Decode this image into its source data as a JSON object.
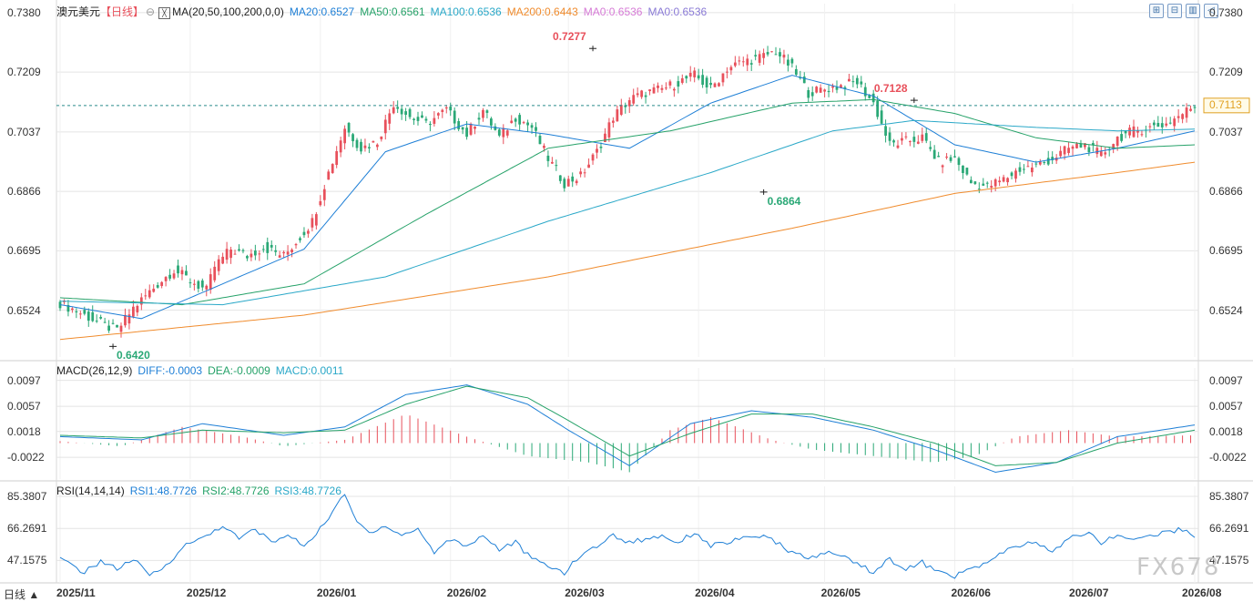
{
  "header": {
    "symbol": "澳元美元",
    "period": "【日线】",
    "period_icon": "circle-dot-icon",
    "ma_icon": "indicator-icon",
    "ma_label": "MA(20,50,100,200,0,0)",
    "ma_values": [
      {
        "text": "MA20:0.6527",
        "color": "#1e7fd6"
      },
      {
        "text": "MA50:0.6561",
        "color": "#26a269"
      },
      {
        "text": "MA100:0.6536",
        "color": "#2aa8c8"
      },
      {
        "text": "MA200:0.6443",
        "color": "#f08c2e"
      },
      {
        "text": "MA0:0.6536",
        "color": "#d67ad6"
      },
      {
        "text": "MA0:0.6536",
        "color": "#8a7ad6"
      }
    ],
    "macd_label": "MACD(26,12,9)",
    "macd_values": [
      {
        "text": "DIFF:-0.0003",
        "color": "#1e7fd6"
      },
      {
        "text": "DEA:-0.0009",
        "color": "#26a269"
      },
      {
        "text": "MACD:0.0011",
        "color": "#2aa8c8"
      }
    ],
    "rsi_label": "RSI(14,14,14)",
    "rsi_values": [
      {
        "text": "RSI1:48.7726",
        "color": "#1e7fd6"
      },
      {
        "text": "RSI2:48.7726",
        "color": "#26a269"
      },
      {
        "text": "RSI3:48.7726",
        "color": "#2aa8c8"
      }
    ]
  },
  "toolbar": {
    "buttons": [
      {
        "name": "zoom-in-icon",
        "glyph": "⊞"
      },
      {
        "name": "zoom-out-icon",
        "glyph": "⊟"
      },
      {
        "name": "chart-settings-icon",
        "glyph": "▥"
      },
      {
        "name": "back-icon",
        "glyph": "◁"
      }
    ]
  },
  "period_tab": "日线 ▲",
  "watermark": "FX678",
  "colors": {
    "up": "#e8505b",
    "down": "#2aa876",
    "grid": "#e4e4e4",
    "ma20": "#1e7fd6",
    "ma50": "#26a269",
    "ma100": "#2aa8c8",
    "ma200": "#f08c2e"
  },
  "chart_data": [
    {
      "type": "candlestick",
      "title": "澳元美元【日线】",
      "x_ticks": [
        "2025/11",
        "2025/12",
        "2026/01",
        "2026/02",
        "2026/03",
        "2026/04",
        "2026/05",
        "2026/06",
        "2026/07",
        "2026/08"
      ],
      "y_ticks": [
        "0.7380",
        "0.7209",
        "0.7037",
        "0.6866",
        "0.6695",
        "0.6524"
      ],
      "ylim": [
        0.64,
        0.7385
      ],
      "annotations": [
        {
          "text": "0.7277",
          "type": "high",
          "value": 0.7277,
          "index": 131
        },
        {
          "text": "0.6420",
          "type": "low",
          "value": 0.642,
          "index": 13
        },
        {
          "text": "0.6864",
          "type": "low",
          "value": 0.6864,
          "index": 173
        },
        {
          "text": "0.7128",
          "type": "high",
          "value": 0.7128,
          "index": 210
        }
      ],
      "current_price": {
        "text": "0.7113",
        "value": 0.7113
      },
      "closes_anchor": [
        [
          0,
          0.6545
        ],
        [
          6,
          0.651
        ],
        [
          11,
          0.648
        ],
        [
          14,
          0.6465
        ],
        [
          18,
          0.653
        ],
        [
          24,
          0.66
        ],
        [
          28,
          0.664
        ],
        [
          32,
          0.661
        ],
        [
          36,
          0.658
        ],
        [
          38,
          0.665
        ],
        [
          42,
          0.67
        ],
        [
          46,
          0.668
        ],
        [
          50,
          0.6705
        ],
        [
          55,
          0.668
        ],
        [
          58,
          0.672
        ],
        [
          62,
          0.678
        ],
        [
          66,
          0.692
        ],
        [
          70,
          0.705
        ],
        [
          74,
          0.699
        ],
        [
          78,
          0.701
        ],
        [
          82,
          0.712
        ],
        [
          86,
          0.708
        ],
        [
          90,
          0.706
        ],
        [
          95,
          0.71
        ],
        [
          100,
          0.703
        ],
        [
          104,
          0.71
        ],
        [
          108,
          0.702
        ],
        [
          112,
          0.708
        ],
        [
          116,
          0.705
        ],
        [
          120,
          0.696
        ],
        [
          124,
          0.689
        ],
        [
          128,
          0.691
        ],
        [
          132,
          0.698
        ],
        [
          136,
          0.708
        ],
        [
          140,
          0.713
        ],
        [
          144,
          0.715
        ],
        [
          148,
          0.716
        ],
        [
          152,
          0.718
        ],
        [
          156,
          0.72
        ],
        [
          160,
          0.716
        ],
        [
          164,
          0.722
        ],
        [
          168,
          0.724
        ],
        [
          172,
          0.725
        ],
        [
          176,
          0.727
        ],
        [
          180,
          0.722
        ],
        [
          184,
          0.715
        ],
        [
          188,
          0.716
        ],
        [
          192,
          0.717
        ],
        [
          196,
          0.718
        ],
        [
          200,
          0.712
        ],
        [
          204,
          0.7
        ],
        [
          208,
          0.701
        ],
        [
          212,
          0.702
        ],
        [
          216,
          0.695
        ],
        [
          220,
          0.696
        ],
        [
          224,
          0.689
        ],
        [
          228,
          0.688
        ],
        [
          232,
          0.69
        ],
        [
          236,
          0.693
        ],
        [
          240,
          0.694
        ],
        [
          244,
          0.696
        ],
        [
          248,
          0.699
        ],
        [
          252,
          0.7
        ],
        [
          256,
          0.697
        ],
        [
          260,
          0.702
        ],
        [
          264,
          0.704
        ],
        [
          268,
          0.705
        ],
        [
          272,
          0.706
        ],
        [
          276,
          0.709
        ],
        [
          279,
          0.7113
        ]
      ],
      "ma_series": {
        "ma20": [
          [
            0,
            0.654
          ],
          [
            20,
            0.65
          ],
          [
            40,
            0.66
          ],
          [
            60,
            0.67
          ],
          [
            80,
            0.698
          ],
          [
            100,
            0.706
          ],
          [
            120,
            0.703
          ],
          [
            140,
            0.699
          ],
          [
            160,
            0.712
          ],
          [
            180,
            0.72
          ],
          [
            200,
            0.714
          ],
          [
            220,
            0.7
          ],
          [
            240,
            0.695
          ],
          [
            260,
            0.699
          ],
          [
            279,
            0.704
          ]
        ],
        "ma50": [
          [
            0,
            0.656
          ],
          [
            30,
            0.654
          ],
          [
            60,
            0.66
          ],
          [
            90,
            0.68
          ],
          [
            120,
            0.699
          ],
          [
            150,
            0.704
          ],
          [
            180,
            0.712
          ],
          [
            200,
            0.713
          ],
          [
            220,
            0.709
          ],
          [
            240,
            0.702
          ],
          [
            260,
            0.699
          ],
          [
            279,
            0.7
          ]
        ],
        "ma100": [
          [
            0,
            0.655
          ],
          [
            40,
            0.654
          ],
          [
            80,
            0.662
          ],
          [
            120,
            0.678
          ],
          [
            160,
            0.692
          ],
          [
            190,
            0.704
          ],
          [
            210,
            0.707
          ],
          [
            240,
            0.705
          ],
          [
            260,
            0.704
          ],
          [
            279,
            0.7045
          ]
        ],
        "ma200": [
          [
            0,
            0.644
          ],
          [
            60,
            0.651
          ],
          [
            120,
            0.662
          ],
          [
            180,
            0.676
          ],
          [
            220,
            0.686
          ],
          [
            260,
            0.692
          ],
          [
            279,
            0.695
          ]
        ]
      }
    },
    {
      "type": "bar",
      "title": "MACD(26,12,9)",
      "y_ticks": [
        "0.0097",
        "0.0057",
        "0.0018",
        "-0.0022"
      ],
      "ylim": [
        -0.005,
        0.0105
      ],
      "diff": [
        [
          0,
          0.001
        ],
        [
          20,
          0.0005
        ],
        [
          35,
          0.003
        ],
        [
          55,
          0.0012
        ],
        [
          70,
          0.0025
        ],
        [
          85,
          0.0075
        ],
        [
          100,
          0.009
        ],
        [
          115,
          0.006
        ],
        [
          125,
          0.002
        ],
        [
          140,
          -0.0035
        ],
        [
          155,
          0.003
        ],
        [
          170,
          0.005
        ],
        [
          185,
          0.004
        ],
        [
          200,
          0.002
        ],
        [
          215,
          -0.001
        ],
        [
          230,
          -0.0045
        ],
        [
          245,
          -0.003
        ],
        [
          260,
          0.001
        ],
        [
          279,
          0.0028
        ]
      ],
      "dea": [
        [
          0,
          0.0012
        ],
        [
          20,
          0.0008
        ],
        [
          35,
          0.002
        ],
        [
          55,
          0.0016
        ],
        [
          70,
          0.002
        ],
        [
          85,
          0.006
        ],
        [
          100,
          0.0088
        ],
        [
          115,
          0.007
        ],
        [
          125,
          0.0035
        ],
        [
          140,
          -0.002
        ],
        [
          155,
          0.0015
        ],
        [
          170,
          0.0045
        ],
        [
          185,
          0.0045
        ],
        [
          200,
          0.0025
        ],
        [
          215,
          0.0
        ],
        [
          230,
          -0.0035
        ],
        [
          245,
          -0.003
        ],
        [
          260,
          0.0
        ],
        [
          279,
          0.002
        ]
      ],
      "hist": [
        [
          0,
          0.0003
        ],
        [
          15,
          -0.0005
        ],
        [
          30,
          0.0025
        ],
        [
          45,
          0.001
        ],
        [
          55,
          -0.0005
        ],
        [
          70,
          0.0005
        ],
        [
          85,
          0.0045
        ],
        [
          100,
          0.001
        ],
        [
          115,
          -0.002
        ],
        [
          130,
          -0.003
        ],
        [
          140,
          -0.0045
        ],
        [
          150,
          0.002
        ],
        [
          160,
          0.004
        ],
        [
          175,
          0.0005
        ],
        [
          185,
          -0.001
        ],
        [
          200,
          -0.002
        ],
        [
          215,
          -0.003
        ],
        [
          225,
          -0.002
        ],
        [
          235,
          0.001
        ],
        [
          248,
          0.002
        ],
        [
          260,
          0.001
        ],
        [
          279,
          0.0012
        ]
      ]
    },
    {
      "type": "line",
      "title": "RSI(14,14,14)",
      "y_ticks": [
        "85.3807",
        "66.2691",
        "47.1575"
      ],
      "ylim": [
        36.0,
        87.0
      ],
      "rsi": [
        [
          0,
          48
        ],
        [
          6,
          40
        ],
        [
          10,
          47
        ],
        [
          14,
          42
        ],
        [
          18,
          48
        ],
        [
          22,
          38
        ],
        [
          26,
          44
        ],
        [
          30,
          55
        ],
        [
          36,
          62
        ],
        [
          40,
          68
        ],
        [
          44,
          60
        ],
        [
          48,
          66
        ],
        [
          52,
          58
        ],
        [
          56,
          62
        ],
        [
          60,
          56
        ],
        [
          64,
          66
        ],
        [
          68,
          80
        ],
        [
          70,
          86
        ],
        [
          73,
          70
        ],
        [
          76,
          64
        ],
        [
          80,
          68
        ],
        [
          84,
          62
        ],
        [
          88,
          66
        ],
        [
          92,
          52
        ],
        [
          96,
          60
        ],
        [
          100,
          56
        ],
        [
          104,
          62
        ],
        [
          108,
          54
        ],
        [
          112,
          58
        ],
        [
          116,
          48
        ],
        [
          120,
          44
        ],
        [
          124,
          40
        ],
        [
          128,
          50
        ],
        [
          132,
          56
        ],
        [
          136,
          62
        ],
        [
          140,
          58
        ],
        [
          144,
          60
        ],
        [
          148,
          62
        ],
        [
          152,
          58
        ],
        [
          156,
          64
        ],
        [
          160,
          56
        ],
        [
          164,
          58
        ],
        [
          168,
          60
        ],
        [
          172,
          62
        ],
        [
          176,
          58
        ],
        [
          180,
          52
        ],
        [
          184,
          48
        ],
        [
          188,
          52
        ],
        [
          192,
          50
        ],
        [
          196,
          46
        ],
        [
          200,
          40
        ],
        [
          204,
          48
        ],
        [
          208,
          42
        ],
        [
          212,
          46
        ],
        [
          216,
          40
        ],
        [
          220,
          38
        ],
        [
          224,
          42
        ],
        [
          228,
          46
        ],
        [
          232,
          52
        ],
        [
          236,
          56
        ],
        [
          240,
          58
        ],
        [
          244,
          52
        ],
        [
          248,
          60
        ],
        [
          252,
          64
        ],
        [
          256,
          58
        ],
        [
          260,
          62
        ],
        [
          264,
          60
        ],
        [
          268,
          62
        ],
        [
          272,
          64
        ],
        [
          276,
          66
        ],
        [
          279,
          62
        ]
      ]
    }
  ]
}
